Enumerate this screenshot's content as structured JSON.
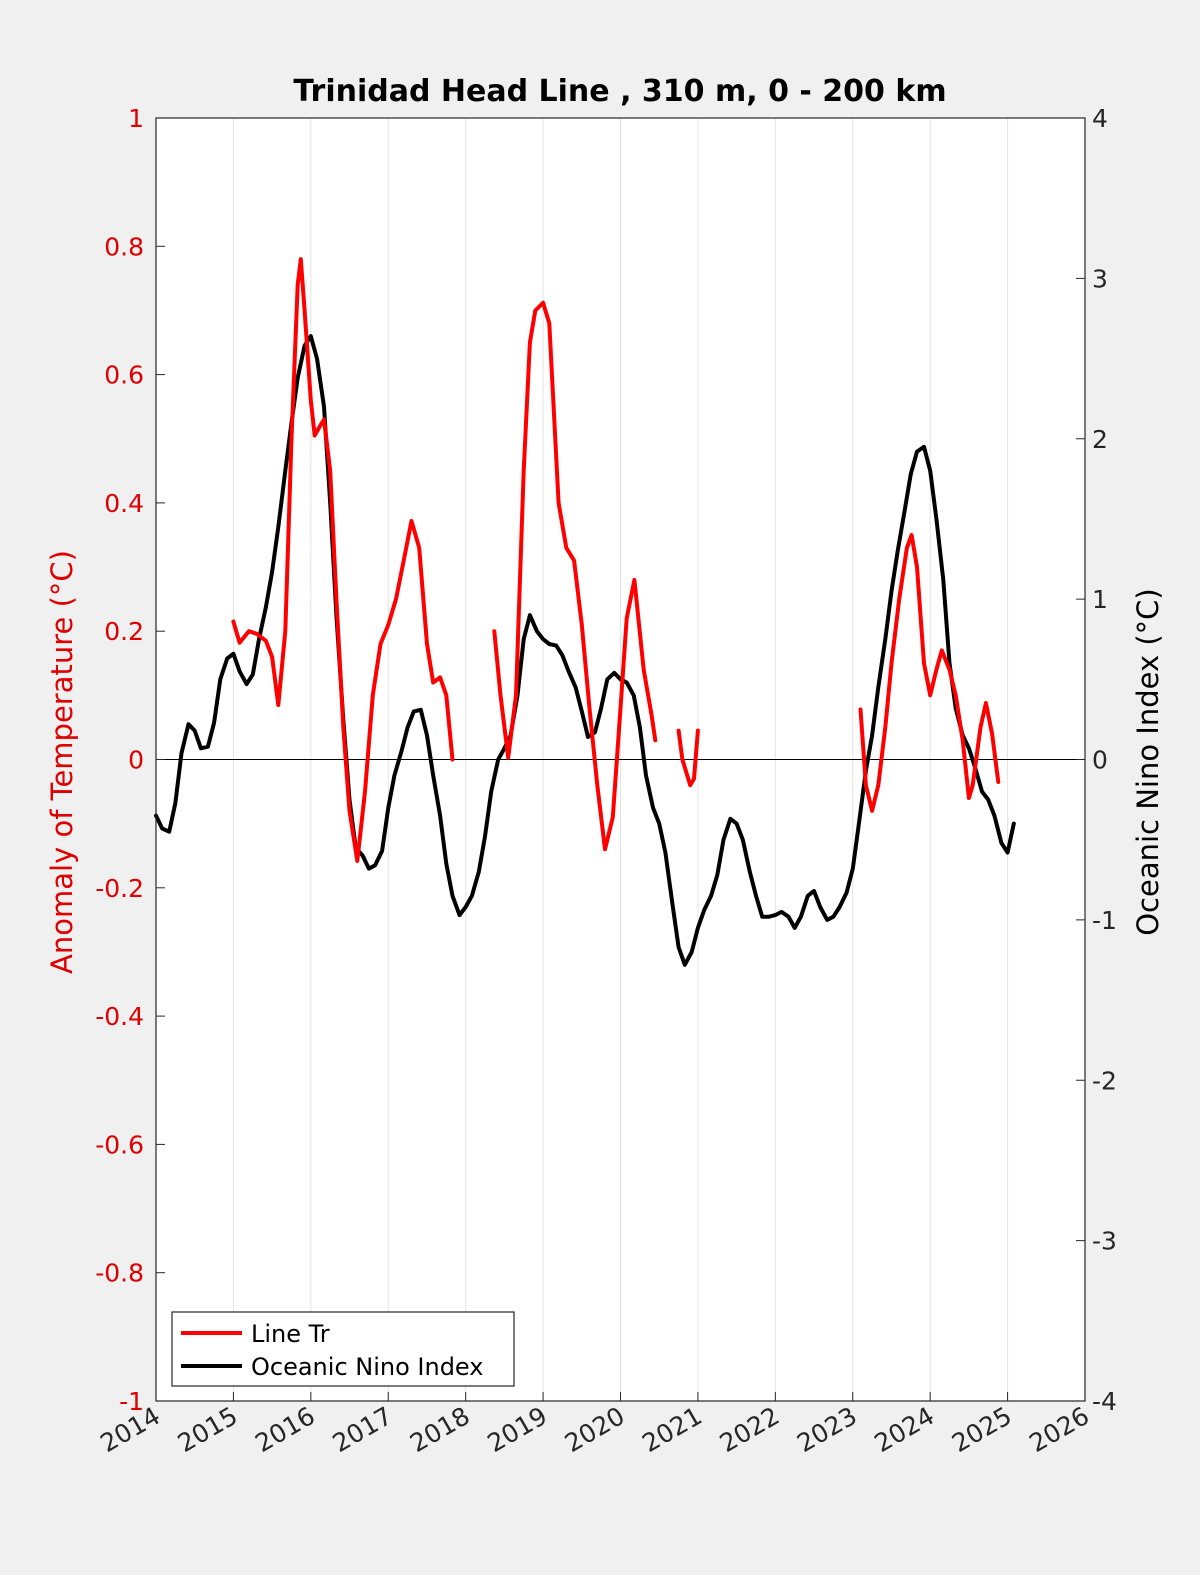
{
  "chart_data": {
    "type": "line",
    "title": "Trinidad Head Line , 310 m, 0 - 200 km",
    "ylabel_left": "Anomaly of Temperature (°C)",
    "ylabel_right": "Oceanic Nino Index (°C)",
    "xlim": [
      2014,
      2026
    ],
    "ylim_left": [
      -1,
      1
    ],
    "ylim_right": [
      -4,
      4
    ],
    "x_ticks": [
      "2014",
      "2015",
      "2016",
      "2017",
      "2018",
      "2019",
      "2020",
      "2021",
      "2022",
      "2023",
      "2024",
      "2025",
      "2026"
    ],
    "y_left_ticks": [
      "1",
      "0.8",
      "0.6",
      "0.4",
      "0.2",
      "0",
      "-0.2",
      "-0.4",
      "-0.6",
      "-0.8",
      "-1"
    ],
    "y_right_ticks": [
      "4",
      "3",
      "2",
      "1",
      "0",
      "-1",
      "-2",
      "-3",
      "-4"
    ],
    "grid": "vertical",
    "legend_position": "bottom-left",
    "colors": {
      "line_tr": "#ff0000",
      "oni": "#000000",
      "left_axis": "#e00000",
      "right_axis": "#262626"
    },
    "series": [
      {
        "name": "Line Tr",
        "axis": "left",
        "segments": [
          [
            [
              2015.0,
              0.215
            ],
            [
              2015.08,
              0.182
            ],
            [
              2015.2,
              0.2
            ],
            [
              2015.3,
              0.196
            ],
            [
              2015.42,
              0.185
            ],
            [
              2015.5,
              0.16
            ],
            [
              2015.58,
              0.085
            ],
            [
              2015.67,
              0.2
            ],
            [
              2015.75,
              0.5
            ],
            [
              2015.83,
              0.74
            ],
            [
              2015.87,
              0.78
            ],
            [
              2015.92,
              0.7
            ],
            [
              2016.0,
              0.56
            ],
            [
              2016.05,
              0.505
            ],
            [
              2016.12,
              0.52
            ],
            [
              2016.17,
              0.53
            ],
            [
              2016.25,
              0.45
            ],
            [
              2016.33,
              0.25
            ],
            [
              2016.42,
              0.05
            ],
            [
              2016.5,
              -0.08
            ],
            [
              2016.6,
              -0.158
            ],
            [
              2016.7,
              -0.05
            ],
            [
              2016.8,
              0.1
            ],
            [
              2016.9,
              0.18
            ],
            [
              2017.0,
              0.21
            ],
            [
              2017.1,
              0.25
            ],
            [
              2017.2,
              0.31
            ],
            [
              2017.3,
              0.372
            ],
            [
              2017.4,
              0.33
            ],
            [
              2017.5,
              0.18
            ],
            [
              2017.58,
              0.12
            ],
            [
              2017.67,
              0.128
            ],
            [
              2017.75,
              0.1
            ],
            [
              2017.83,
              0.0
            ]
          ],
          [
            [
              2018.37,
              0.2
            ],
            [
              2018.45,
              0.1
            ],
            [
              2018.55,
              0.003
            ],
            [
              2018.65,
              0.1
            ],
            [
              2018.75,
              0.45
            ],
            [
              2018.83,
              0.65
            ],
            [
              2018.9,
              0.7
            ],
            [
              2019.0,
              0.712
            ],
            [
              2019.08,
              0.68
            ],
            [
              2019.2,
              0.4
            ],
            [
              2019.3,
              0.33
            ],
            [
              2019.4,
              0.31
            ],
            [
              2019.5,
              0.21
            ],
            [
              2019.6,
              0.08
            ],
            [
              2019.7,
              -0.04
            ],
            [
              2019.8,
              -0.14
            ],
            [
              2019.9,
              -0.09
            ],
            [
              2020.0,
              0.08
            ],
            [
              2020.08,
              0.22
            ],
            [
              2020.18,
              0.28
            ],
            [
              2020.3,
              0.14
            ],
            [
              2020.4,
              0.07
            ],
            [
              2020.45,
              0.03
            ]
          ],
          [
            [
              2020.75,
              0.045
            ],
            [
              2020.8,
              0.0
            ],
            [
              2020.9,
              -0.04
            ],
            [
              2020.95,
              -0.03
            ],
            [
              2021.0,
              0.045
            ]
          ],
          [
            [
              2023.1,
              0.078
            ],
            [
              2023.17,
              -0.04
            ],
            [
              2023.25,
              -0.08
            ],
            [
              2023.33,
              -0.04
            ],
            [
              2023.42,
              0.05
            ],
            [
              2023.5,
              0.15
            ],
            [
              2023.6,
              0.25
            ],
            [
              2023.7,
              0.33
            ],
            [
              2023.76,
              0.35
            ],
            [
              2023.83,
              0.3
            ],
            [
              2023.92,
              0.15
            ],
            [
              2024.0,
              0.1
            ],
            [
              2024.08,
              0.14
            ],
            [
              2024.15,
              0.17
            ],
            [
              2024.25,
              0.14
            ],
            [
              2024.33,
              0.1
            ],
            [
              2024.42,
              0.03
            ],
            [
              2024.5,
              -0.06
            ],
            [
              2024.55,
              -0.04
            ],
            [
              2024.65,
              0.05
            ],
            [
              2024.72,
              0.088
            ],
            [
              2024.8,
              0.04
            ],
            [
              2024.88,
              -0.035
            ]
          ]
        ]
      },
      {
        "name": "Oceanic Nino Index",
        "axis": "right",
        "segments": [
          [
            [
              2014.0,
              -0.35
            ],
            [
              2014.08,
              -0.43
            ],
            [
              2014.17,
              -0.45
            ],
            [
              2014.25,
              -0.27
            ],
            [
              2014.33,
              0.04
            ],
            [
              2014.42,
              0.22
            ],
            [
              2014.5,
              0.18
            ],
            [
              2014.58,
              0.07
            ],
            [
              2014.67,
              0.08
            ],
            [
              2014.75,
              0.23
            ],
            [
              2014.83,
              0.5
            ],
            [
              2014.92,
              0.63
            ],
            [
              2015.0,
              0.66
            ],
            [
              2015.08,
              0.55
            ],
            [
              2015.17,
              0.47
            ],
            [
              2015.25,
              0.53
            ],
            [
              2015.33,
              0.75
            ],
            [
              2015.42,
              0.95
            ],
            [
              2015.5,
              1.17
            ],
            [
              2015.58,
              1.45
            ],
            [
              2015.67,
              1.8
            ],
            [
              2015.75,
              2.1
            ],
            [
              2015.83,
              2.38
            ],
            [
              2015.92,
              2.58
            ],
            [
              2016.0,
              2.64
            ],
            [
              2016.08,
              2.5
            ],
            [
              2016.17,
              2.2
            ],
            [
              2016.25,
              1.6
            ],
            [
              2016.33,
              0.9
            ],
            [
              2016.42,
              0.25
            ],
            [
              2016.5,
              -0.25
            ],
            [
              2016.58,
              -0.55
            ],
            [
              2016.67,
              -0.6
            ],
            [
              2016.75,
              -0.68
            ],
            [
              2016.83,
              -0.66
            ],
            [
              2016.92,
              -0.57
            ],
            [
              2017.0,
              -0.3
            ],
            [
              2017.08,
              -0.1
            ],
            [
              2017.17,
              0.05
            ],
            [
              2017.25,
              0.2
            ],
            [
              2017.33,
              0.3
            ],
            [
              2017.42,
              0.31
            ],
            [
              2017.5,
              0.15
            ],
            [
              2017.58,
              -0.1
            ],
            [
              2017.67,
              -0.35
            ],
            [
              2017.75,
              -0.65
            ],
            [
              2017.83,
              -0.85
            ],
            [
              2017.92,
              -0.97
            ],
            [
              2018.0,
              -0.92
            ],
            [
              2018.08,
              -0.85
            ],
            [
              2018.17,
              -0.7
            ],
            [
              2018.25,
              -0.48
            ],
            [
              2018.33,
              -0.2
            ],
            [
              2018.42,
              0.0
            ],
            [
              2018.5,
              0.07
            ],
            [
              2018.58,
              0.15
            ],
            [
              2018.67,
              0.4
            ],
            [
              2018.75,
              0.75
            ],
            [
              2018.83,
              0.9
            ],
            [
              2018.92,
              0.8
            ],
            [
              2019.0,
              0.75
            ],
            [
              2019.08,
              0.72
            ],
            [
              2019.17,
              0.71
            ],
            [
              2019.25,
              0.65
            ],
            [
              2019.33,
              0.55
            ],
            [
              2019.42,
              0.45
            ],
            [
              2019.5,
              0.3
            ],
            [
              2019.58,
              0.14
            ],
            [
              2019.67,
              0.17
            ],
            [
              2019.75,
              0.32
            ],
            [
              2019.83,
              0.5
            ],
            [
              2019.92,
              0.54
            ],
            [
              2020.0,
              0.5
            ],
            [
              2020.08,
              0.48
            ],
            [
              2020.17,
              0.4
            ],
            [
              2020.25,
              0.2
            ],
            [
              2020.33,
              -0.1
            ],
            [
              2020.42,
              -0.3
            ],
            [
              2020.5,
              -0.4
            ],
            [
              2020.58,
              -0.58
            ],
            [
              2020.67,
              -0.9
            ],
            [
              2020.75,
              -1.17
            ],
            [
              2020.83,
              -1.28
            ],
            [
              2020.92,
              -1.2
            ],
            [
              2021.0,
              -1.05
            ],
            [
              2021.08,
              -0.94
            ],
            [
              2021.17,
              -0.85
            ],
            [
              2021.25,
              -0.72
            ],
            [
              2021.33,
              -0.5
            ],
            [
              2021.42,
              -0.37
            ],
            [
              2021.5,
              -0.4
            ],
            [
              2021.58,
              -0.5
            ],
            [
              2021.67,
              -0.7
            ],
            [
              2021.75,
              -0.85
            ],
            [
              2021.83,
              -0.98
            ],
            [
              2021.92,
              -0.98
            ],
            [
              2022.0,
              -0.97
            ],
            [
              2022.08,
              -0.95
            ],
            [
              2022.17,
              -0.98
            ],
            [
              2022.25,
              -1.05
            ],
            [
              2022.33,
              -0.98
            ],
            [
              2022.42,
              -0.85
            ],
            [
              2022.5,
              -0.82
            ],
            [
              2022.58,
              -0.92
            ],
            [
              2022.67,
              -1.0
            ],
            [
              2022.75,
              -0.98
            ],
            [
              2022.83,
              -0.92
            ],
            [
              2022.92,
              -0.83
            ],
            [
              2023.0,
              -0.68
            ],
            [
              2023.08,
              -0.4
            ],
            [
              2023.17,
              -0.07
            ],
            [
              2023.25,
              0.15
            ],
            [
              2023.33,
              0.45
            ],
            [
              2023.42,
              0.75
            ],
            [
              2023.5,
              1.05
            ],
            [
              2023.58,
              1.3
            ],
            [
              2023.67,
              1.55
            ],
            [
              2023.75,
              1.78
            ],
            [
              2023.83,
              1.92
            ],
            [
              2023.92,
              1.95
            ],
            [
              2024.0,
              1.8
            ],
            [
              2024.08,
              1.5
            ],
            [
              2024.17,
              1.12
            ],
            [
              2024.25,
              0.6
            ],
            [
              2024.33,
              0.32
            ],
            [
              2024.42,
              0.15
            ],
            [
              2024.5,
              0.07
            ],
            [
              2024.58,
              -0.05
            ],
            [
              2024.67,
              -0.2
            ],
            [
              2024.75,
              -0.25
            ],
            [
              2024.83,
              -0.35
            ],
            [
              2024.92,
              -0.52
            ],
            [
              2025.0,
              -0.58
            ],
            [
              2025.08,
              -0.4
            ]
          ]
        ]
      }
    ],
    "legend": [
      "Line Tr",
      "Oceanic Nino Index"
    ]
  }
}
